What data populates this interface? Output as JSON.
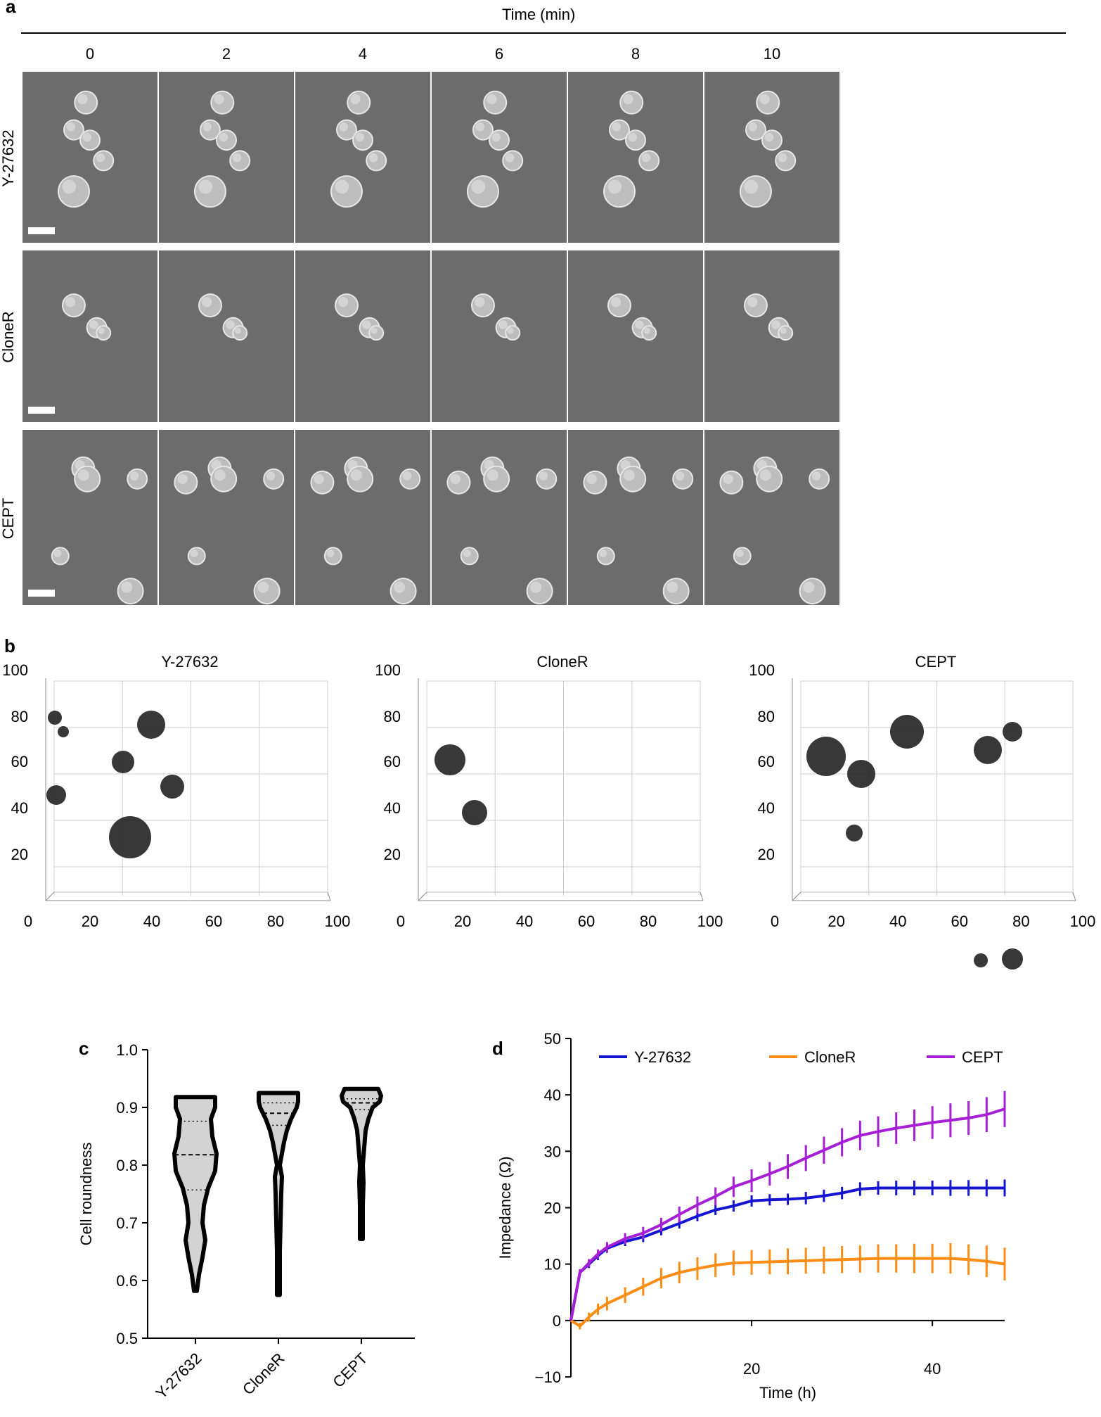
{
  "panel_a": {
    "letter": "a",
    "header": "Time (min)",
    "times": [
      "0",
      "2",
      "4",
      "6",
      "8",
      "10"
    ],
    "rows": [
      "Y-27632",
      "CloneR",
      "CEPT"
    ]
  },
  "panel_b": {
    "letter": "b",
    "titles": [
      "Y-27632",
      "CloneR",
      "CEPT"
    ],
    "y_ticks": [
      "100",
      "80",
      "60",
      "40",
      "20"
    ],
    "x_ticks": [
      "0",
      "20",
      "40",
      "60",
      "80",
      "100"
    ]
  },
  "panel_c": {
    "letter": "c",
    "ylabel": "Cell roundness",
    "y_ticks": [
      "1.0",
      "0.9",
      "0.8",
      "0.7",
      "0.6",
      "0.5"
    ],
    "categories": [
      "Y-27632",
      "CloneR",
      "CEPT"
    ]
  },
  "panel_d": {
    "letter": "d",
    "ylabel": "Impedance (Ω)",
    "xlabel": "Time (h)",
    "y_ticks": [
      "50",
      "40",
      "30",
      "20",
      "10",
      "0",
      "−10"
    ],
    "x_ticks": [
      "20",
      "40"
    ],
    "legend": [
      "Y-27632",
      "CloneR",
      "CEPT"
    ]
  },
  "chart_data": [
    {
      "type": "violin",
      "ylabel": "Cell roundness",
      "ylim": [
        0.5,
        1.0
      ],
      "categories": [
        "Y-27632",
        "CloneR",
        "CEPT"
      ],
      "median": [
        0.818,
        0.89,
        0.908
      ],
      "q1": [
        0.757,
        0.869,
        0.896
      ],
      "q3": [
        0.876,
        0.908,
        0.915
      ],
      "min": [
        0.582,
        0.575,
        0.672
      ],
      "max": [
        0.918,
        0.925,
        0.932
      ]
    },
    {
      "type": "line",
      "xlabel": "Time (h)",
      "ylabel": "Impedance (Ω)",
      "xlim": [
        0,
        48
      ],
      "ylim": [
        -10,
        50
      ],
      "x": [
        0,
        1,
        2,
        3,
        4,
        6,
        8,
        10,
        12,
        14,
        16,
        18,
        20,
        22,
        24,
        26,
        28,
        30,
        32,
        34,
        36,
        38,
        40,
        42,
        44,
        46,
        48
      ],
      "series": [
        {
          "name": "Y-27632",
          "color": "#1414d2",
          "values": [
            0,
            8.5,
            10,
            11.5,
            12.8,
            14,
            14.8,
            16,
            17.2,
            18.5,
            19.6,
            20.3,
            21.2,
            21.4,
            21.5,
            21.7,
            22.1,
            22.6,
            23.3,
            23.5,
            23.5,
            23.5,
            23.5,
            23.5,
            23.5,
            23.5,
            23.5
          ],
          "error": [
            0.4,
            0.6,
            0.7,
            0.8,
            0.8,
            0.8,
            0.9,
            0.9,
            0.9,
            0.9,
            0.9,
            1.0,
            1.0,
            1.0,
            1.0,
            1.1,
            1.1,
            1.1,
            1.2,
            1.2,
            1.3,
            1.3,
            1.3,
            1.4,
            1.4,
            1.5,
            1.5
          ]
        },
        {
          "name": "CloneR",
          "color": "#ff8c14",
          "values": [
            0,
            -1,
            0.6,
            2,
            3,
            4.5,
            6,
            7.5,
            8.5,
            9.2,
            9.8,
            10.2,
            10.3,
            10.4,
            10.5,
            10.6,
            10.7,
            10.8,
            10.9,
            11,
            11,
            11,
            11,
            11,
            10.8,
            10.5,
            10
          ],
          "error": [
            0.4,
            0.6,
            0.8,
            1.0,
            1.2,
            1.4,
            1.6,
            1.8,
            1.9,
            2.0,
            2.1,
            2.2,
            2.2,
            2.2,
            2.3,
            2.3,
            2.4,
            2.4,
            2.4,
            2.5,
            2.5,
            2.6,
            2.6,
            2.7,
            2.7,
            2.8,
            2.9
          ]
        },
        {
          "name": "CEPT",
          "color": "#a61ed6",
          "values": [
            0,
            8.5,
            10.2,
            11.8,
            13,
            14.5,
            15.5,
            17,
            18.8,
            20.5,
            22,
            23.7,
            24.8,
            26,
            27.3,
            28.8,
            30.2,
            31.6,
            32.8,
            33.5,
            34.1,
            34.6,
            35.1,
            35.5,
            35.9,
            36.5,
            37.5
          ],
          "error": [
            0.4,
            0.6,
            0.7,
            0.8,
            0.9,
            1.0,
            1.1,
            1.2,
            1.4,
            1.5,
            1.6,
            1.8,
            2.0,
            2.1,
            2.2,
            2.3,
            2.4,
            2.5,
            2.6,
            2.7,
            2.8,
            2.8,
            2.9,
            3.0,
            3.0,
            3.1,
            3.2
          ]
        }
      ]
    }
  ]
}
